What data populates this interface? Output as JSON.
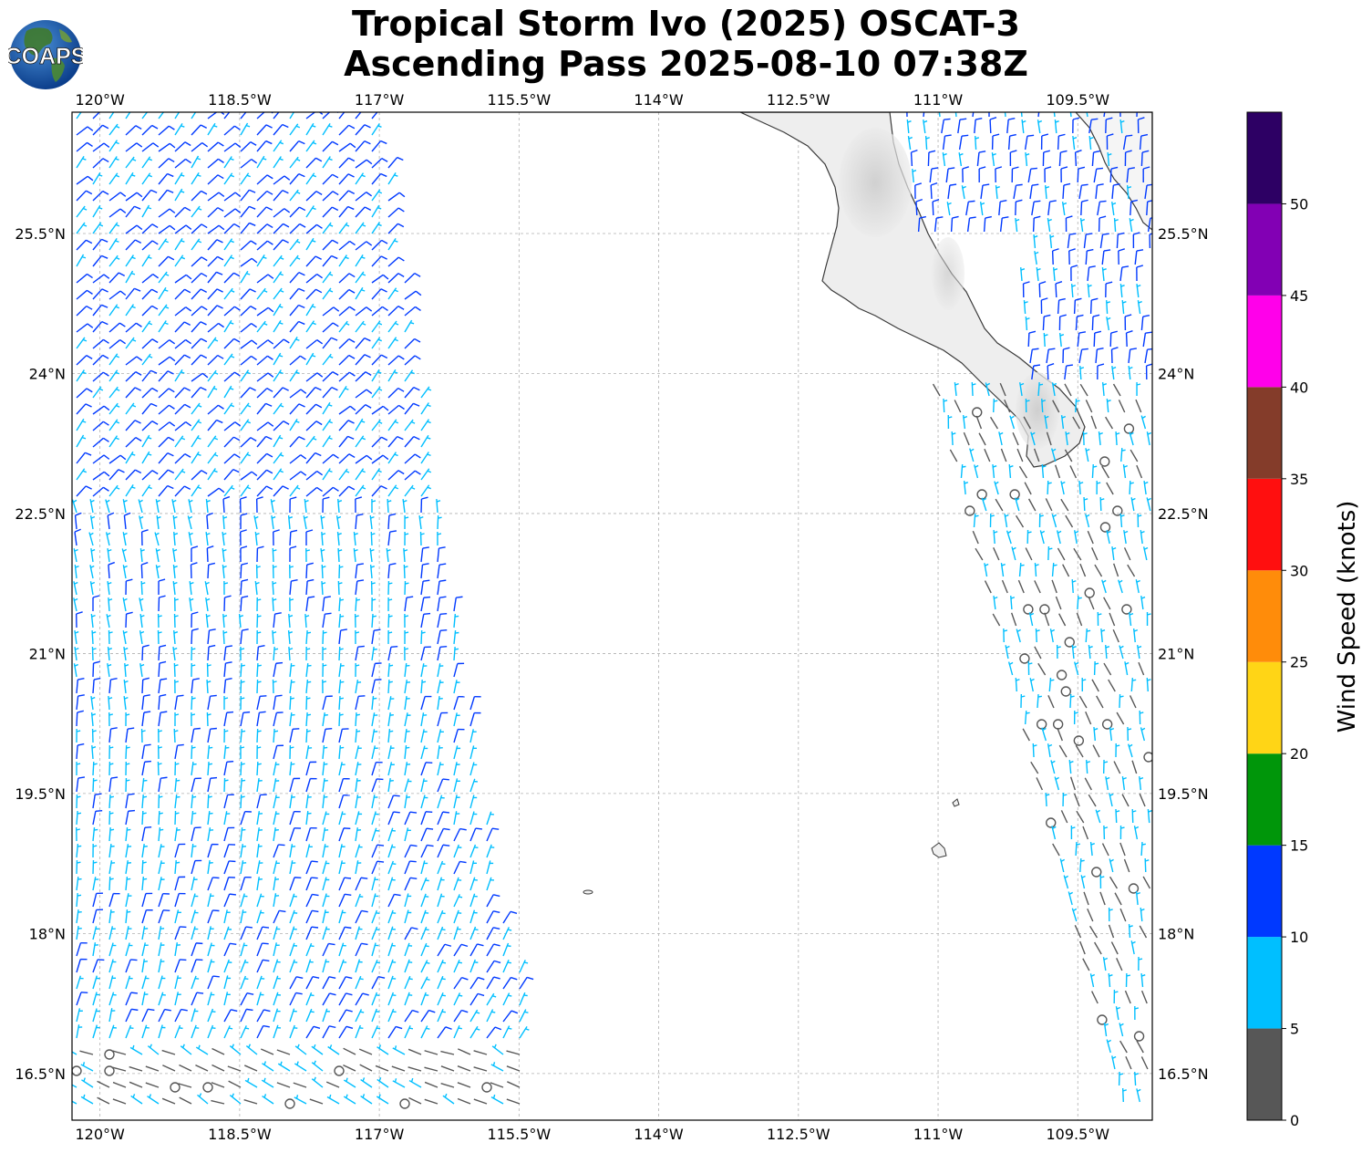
{
  "header": {
    "title_line1": "Tropical Storm Ivo (2025) OSCAT-3",
    "title_line2": "Ascending Pass 2025-08-10 07:38Z",
    "logo_text": "COAPS"
  },
  "map": {
    "lon_range": [
      -120.3,
      -108.7
    ],
    "lat_range": [
      16.0,
      26.8
    ],
    "lon_ticks": [
      {
        "value": -120.0,
        "label": "120°W"
      },
      {
        "value": -118.5,
        "label": "118.5°W"
      },
      {
        "value": -117.0,
        "label": "117°W"
      },
      {
        "value": -115.5,
        "label": "115.5°W"
      },
      {
        "value": -114.0,
        "label": "114°W"
      },
      {
        "value": -112.5,
        "label": "112.5°W"
      },
      {
        "value": -111.0,
        "label": "111°W"
      },
      {
        "value": -109.5,
        "label": "109.5°W"
      }
    ],
    "lat_ticks": [
      {
        "value": 25.5,
        "label": "25.5°N"
      },
      {
        "value": 24.0,
        "label": "24°N"
      },
      {
        "value": 22.5,
        "label": "22.5°N"
      },
      {
        "value": 21.0,
        "label": "21°N"
      },
      {
        "value": 19.5,
        "label": "19.5°N"
      },
      {
        "value": 18.0,
        "label": "18°N"
      },
      {
        "value": 16.5,
        "label": "16.5°N"
      }
    ],
    "gridlines": true
  },
  "colorbar": {
    "title": "Wind Speed (knots)",
    "tick_labels": [
      "0",
      "5",
      "10",
      "15",
      "20",
      "25",
      "30",
      "35",
      "40",
      "45",
      "50"
    ],
    "bins": [
      {
        "from": 0,
        "to": 5,
        "color": "#575757"
      },
      {
        "from": 5,
        "to": 10,
        "color": "#00bfff"
      },
      {
        "from": 10,
        "to": 15,
        "color": "#0039ff"
      },
      {
        "from": 15,
        "to": 20,
        "color": "#00960a"
      },
      {
        "from": 20,
        "to": 25,
        "color": "#ffd516"
      },
      {
        "from": 25,
        "to": 30,
        "color": "#ff8c0a"
      },
      {
        "from": 30,
        "to": 35,
        "color": "#ff0f0f"
      },
      {
        "from": 35,
        "to": 40,
        "color": "#843c2a"
      },
      {
        "from": 40,
        "to": 45,
        "color": "#ff00ea"
      },
      {
        "from": 45,
        "to": 50,
        "color": "#8200b4"
      },
      {
        "from": 50,
        "to": 55,
        "color": "#2d0064"
      }
    ]
  }
}
